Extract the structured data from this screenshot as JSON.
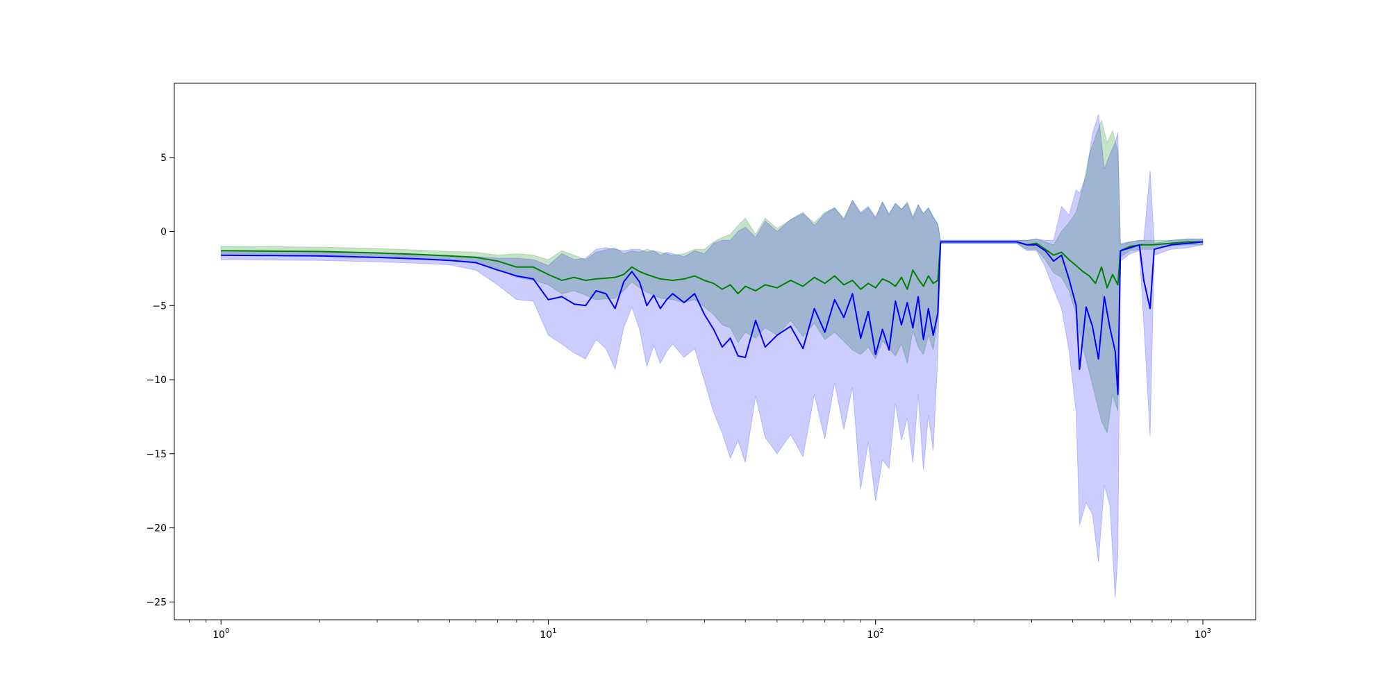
{
  "chart_data": {
    "type": "line",
    "title": "",
    "xlabel": "",
    "ylabel": "",
    "xscale": "log",
    "xlim": [
      0.72,
      1450
    ],
    "ylim": [
      -26.2,
      10
    ],
    "grid": false,
    "legend": "none",
    "xticks": [
      {
        "value": 1,
        "base": "10",
        "exp": "0"
      },
      {
        "value": 10,
        "base": "10",
        "exp": "1"
      },
      {
        "value": 100,
        "base": "10",
        "exp": "2"
      },
      {
        "value": 1000,
        "base": "10",
        "exp": "3"
      }
    ],
    "yticks": [
      {
        "value": 5,
        "label": "5"
      },
      {
        "value": 0,
        "label": "0"
      },
      {
        "value": -5,
        "label": "−5"
      },
      {
        "value": -10,
        "label": "−10"
      },
      {
        "value": -15,
        "label": "−15"
      },
      {
        "value": -20,
        "label": "−20"
      },
      {
        "value": -25,
        "label": "−25"
      }
    ],
    "series": [
      {
        "color": "#008000",
        "band_color": "rgba(0,128,0,0.22)",
        "points": [
          [
            1,
            -1.3,
            -1.6,
            -1.0
          ],
          [
            2,
            -1.35,
            -1.65,
            -1.05
          ],
          [
            3,
            -1.45,
            -1.75,
            -1.15
          ],
          [
            4,
            -1.55,
            -1.85,
            -1.25
          ],
          [
            5,
            -1.65,
            -1.95,
            -1.35
          ],
          [
            6,
            -1.75,
            -2.05,
            -1.4
          ],
          [
            7,
            -2.0,
            -2.5,
            -1.6
          ],
          [
            8,
            -2.4,
            -3.1,
            -1.5
          ],
          [
            9,
            -2.4,
            -3.3,
            -1.6
          ],
          [
            10,
            -2.9,
            -3.6,
            -1.9
          ],
          [
            11,
            -3.3,
            -4.2,
            -1.3
          ],
          [
            12,
            -3.1,
            -4.0,
            -1.6
          ],
          [
            13,
            -3.3,
            -4.3,
            -1.9
          ],
          [
            14,
            -3.2,
            -4.6,
            -1.4
          ],
          [
            16,
            -3.1,
            -4.5,
            -1.1
          ],
          [
            17,
            -2.9,
            -4.0,
            -1.5
          ],
          [
            18,
            -2.4,
            -3.4,
            -1.3
          ],
          [
            19,
            -2.7,
            -3.8,
            -1.4
          ],
          [
            20,
            -2.9,
            -4.1,
            -1.2
          ],
          [
            22,
            -3.2,
            -4.5,
            -1.4
          ],
          [
            24,
            -3.3,
            -4.6,
            -1.6
          ],
          [
            26,
            -3.2,
            -4.8,
            -1.5
          ],
          [
            28,
            -3.0,
            -4.6,
            -1.2
          ],
          [
            30,
            -3.3,
            -5.1,
            -1.2
          ],
          [
            32,
            -3.5,
            -5.6,
            -0.7
          ],
          [
            34,
            -3.9,
            -6.3,
            -0.4
          ],
          [
            36,
            -3.6,
            -6.5,
            -0.2
          ],
          [
            38,
            -4.2,
            -7.5,
            0.4
          ],
          [
            40,
            -3.7,
            -6.8,
            0.9
          ],
          [
            43,
            -4.0,
            -7.2,
            -0.2
          ],
          [
            46,
            -3.6,
            -6.5,
            0.9
          ],
          [
            50,
            -3.8,
            -7.0,
            0.2
          ],
          [
            55,
            -3.3,
            -6.0,
            0.8
          ],
          [
            60,
            -3.7,
            -7.1,
            1.2
          ],
          [
            65,
            -3.1,
            -6.2,
            0.6
          ],
          [
            70,
            -3.5,
            -7.3,
            1.3
          ],
          [
            75,
            -3.0,
            -6.8,
            1.6
          ],
          [
            80,
            -3.6,
            -7.4,
            0.9
          ],
          [
            85,
            -3.3,
            -8.0,
            2.1
          ],
          [
            90,
            -3.9,
            -8.3,
            1.2
          ],
          [
            95,
            -3.5,
            -7.8,
            1.6
          ],
          [
            100,
            -3.8,
            -8.6,
            0.9
          ],
          [
            105,
            -3.2,
            -7.4,
            2.0
          ],
          [
            110,
            -3.4,
            -7.9,
            1.1
          ],
          [
            115,
            -3.7,
            -8.4,
            1.9
          ],
          [
            120,
            -3.1,
            -7.6,
            1.5
          ],
          [
            125,
            -3.9,
            -8.9,
            2.0
          ],
          [
            130,
            -2.6,
            -6.7,
            1.0
          ],
          [
            135,
            -3.2,
            -7.8,
            1.8
          ],
          [
            140,
            -3.7,
            -8.3,
            1.2
          ],
          [
            145,
            -3.0,
            -7.0,
            1.6
          ],
          [
            150,
            -3.5,
            -8.0,
            1.0
          ],
          [
            155,
            -3.3,
            -5.8,
            0.5
          ],
          [
            158,
            -0.7,
            -0.8,
            -0.6
          ],
          [
            200,
            -0.7,
            -0.8,
            -0.6
          ],
          [
            270,
            -0.7,
            -0.8,
            -0.6
          ],
          [
            290,
            -0.9,
            -1.2,
            -0.6
          ],
          [
            310,
            -0.8,
            -1.2,
            -0.5
          ],
          [
            330,
            -1.2,
            -1.9,
            -0.7
          ],
          [
            350,
            -1.6,
            -2.8,
            -0.9
          ],
          [
            370,
            -1.4,
            -3.1,
            0.0
          ],
          [
            390,
            -1.9,
            -4.0,
            0.6
          ],
          [
            410,
            -2.3,
            -5.6,
            1.3
          ],
          [
            430,
            -2.7,
            -7.8,
            3.0
          ],
          [
            450,
            -3.0,
            -9.5,
            5.2
          ],
          [
            470,
            -3.5,
            -11.2,
            6.4
          ],
          [
            490,
            -2.4,
            -12.8,
            7.5
          ],
          [
            510,
            -3.8,
            -13.6,
            6.0
          ],
          [
            530,
            -2.9,
            -11.0,
            6.8
          ],
          [
            550,
            -3.6,
            -12.1,
            5.4
          ],
          [
            560,
            -1.3,
            -1.7,
            -0.9
          ],
          [
            600,
            -1.0,
            -1.3,
            -0.7
          ],
          [
            650,
            -0.9,
            -1.2,
            -0.6
          ],
          [
            700,
            -0.9,
            -1.2,
            -0.6
          ],
          [
            800,
            -0.8,
            -1.0,
            -0.6
          ],
          [
            900,
            -0.7,
            -0.9,
            -0.5
          ],
          [
            1000,
            -0.7,
            -0.9,
            -0.5
          ]
        ]
      },
      {
        "color": "#0000ff",
        "band_color": "rgba(0,0,255,0.20)",
        "points": [
          [
            1,
            -1.6,
            -1.9,
            -1.3
          ],
          [
            2,
            -1.65,
            -1.95,
            -1.35
          ],
          [
            3,
            -1.75,
            -2.05,
            -1.45
          ],
          [
            4,
            -1.85,
            -2.15,
            -1.55
          ],
          [
            5,
            -1.95,
            -2.25,
            -1.65
          ],
          [
            6,
            -2.1,
            -2.6,
            -1.7
          ],
          [
            7,
            -2.6,
            -3.6,
            -1.8
          ],
          [
            8,
            -3.0,
            -4.6,
            -1.8
          ],
          [
            9,
            -3.2,
            -4.7,
            -1.9
          ],
          [
            10,
            -4.6,
            -7.0,
            -2.3
          ],
          [
            11,
            -4.4,
            -7.6,
            -1.5
          ],
          [
            12,
            -4.9,
            -8.2,
            -1.9
          ],
          [
            13,
            -5.0,
            -8.6,
            -1.8
          ],
          [
            14,
            -4.0,
            -7.3,
            -1.2
          ],
          [
            15,
            -4.2,
            -7.9,
            -1.1
          ],
          [
            16,
            -5.2,
            -9.3,
            -1.2
          ],
          [
            17,
            -3.4,
            -6.5,
            -1.3
          ],
          [
            18,
            -2.7,
            -5.1,
            -1.2
          ],
          [
            19,
            -3.4,
            -6.6,
            -1.2
          ],
          [
            20,
            -5.0,
            -9.1,
            -1.4
          ],
          [
            21,
            -4.3,
            -7.7,
            -1.3
          ],
          [
            22,
            -5.2,
            -8.9,
            -1.6
          ],
          [
            23,
            -4.6,
            -8.1,
            -1.4
          ],
          [
            24,
            -4.2,
            -7.6,
            -1.5
          ],
          [
            26,
            -4.8,
            -8.5,
            -1.7
          ],
          [
            28,
            -4.2,
            -7.9,
            -1.3
          ],
          [
            30,
            -5.6,
            -10.1,
            -1.5
          ],
          [
            32,
            -6.6,
            -12.2,
            -0.8
          ],
          [
            34,
            -7.8,
            -13.6,
            -0.6
          ],
          [
            36,
            -7.2,
            -15.3,
            -0.6
          ],
          [
            38,
            -8.4,
            -14.1,
            0.0
          ],
          [
            40,
            -8.5,
            -15.6,
            0.3
          ],
          [
            43,
            -6.0,
            -11.1,
            -0.4
          ],
          [
            46,
            -7.8,
            -13.9,
            0.7
          ],
          [
            50,
            -7.0,
            -15.0,
            0.0
          ],
          [
            55,
            -6.4,
            -13.7,
            0.8
          ],
          [
            60,
            -7.9,
            -15.2,
            1.3
          ],
          [
            65,
            -5.2,
            -11.0,
            0.4
          ],
          [
            70,
            -6.8,
            -14.0,
            1.2
          ],
          [
            75,
            -4.6,
            -10.2,
            1.6
          ],
          [
            80,
            -5.8,
            -13.4,
            0.8
          ],
          [
            85,
            -4.2,
            -10.5,
            2.1
          ],
          [
            90,
            -7.2,
            -17.4,
            1.3
          ],
          [
            95,
            -5.4,
            -14.2,
            1.7
          ],
          [
            100,
            -8.3,
            -18.2,
            1.0
          ],
          [
            105,
            -6.6,
            -15.4,
            2.0
          ],
          [
            110,
            -8.0,
            -16.0,
            1.2
          ],
          [
            115,
            -4.7,
            -11.6,
            1.9
          ],
          [
            120,
            -6.3,
            -14.1,
            1.5
          ],
          [
            125,
            -4.8,
            -12.6,
            1.9
          ],
          [
            130,
            -6.5,
            -15.6,
            0.9
          ],
          [
            135,
            -4.4,
            -11.0,
            1.8
          ],
          [
            140,
            -7.3,
            -16.1,
            1.2
          ],
          [
            145,
            -5.2,
            -12.4,
            1.6
          ],
          [
            150,
            -7.0,
            -14.8,
            1.0
          ],
          [
            155,
            -5.5,
            -8.4,
            0.5
          ],
          [
            158,
            -0.7,
            -0.8,
            -0.6
          ],
          [
            200,
            -0.7,
            -0.8,
            -0.6
          ],
          [
            270,
            -0.7,
            -0.8,
            -0.6
          ],
          [
            290,
            -0.9,
            -1.3,
            -0.6
          ],
          [
            310,
            -0.9,
            -1.3,
            -0.5
          ],
          [
            330,
            -1.3,
            -2.4,
            -0.6
          ],
          [
            350,
            -2.0,
            -3.9,
            -0.6
          ],
          [
            370,
            -1.6,
            -5.2,
            1.7
          ],
          [
            390,
            -3.2,
            -8.0,
            1.1
          ],
          [
            410,
            -5.0,
            -12.2,
            2.8
          ],
          [
            420,
            -9.3,
            -19.8,
            2.6
          ],
          [
            440,
            -5.1,
            -18.3,
            3.7
          ],
          [
            460,
            -6.4,
            -19.1,
            6.6
          ],
          [
            480,
            -8.6,
            -22.3,
            7.9
          ],
          [
            500,
            -4.4,
            -17.1,
            4.2
          ],
          [
            520,
            -6.5,
            -18.5,
            5.2
          ],
          [
            540,
            -8.1,
            -24.7,
            6.0
          ],
          [
            550,
            -11.0,
            -21.8,
            6.7
          ],
          [
            560,
            -1.3,
            -2.0,
            -0.8
          ],
          [
            600,
            -1.1,
            -1.5,
            -0.7
          ],
          [
            640,
            -0.9,
            -1.3,
            -0.6
          ],
          [
            660,
            -3.3,
            -6.2,
            -0.6
          ],
          [
            690,
            -5.2,
            -13.8,
            4.1
          ],
          [
            710,
            -1.2,
            -1.6,
            -0.8
          ],
          [
            800,
            -0.9,
            -1.2,
            -0.6
          ],
          [
            900,
            -0.8,
            -1.1,
            -0.5
          ],
          [
            1000,
            -0.7,
            -0.9,
            -0.5
          ]
        ]
      }
    ]
  }
}
